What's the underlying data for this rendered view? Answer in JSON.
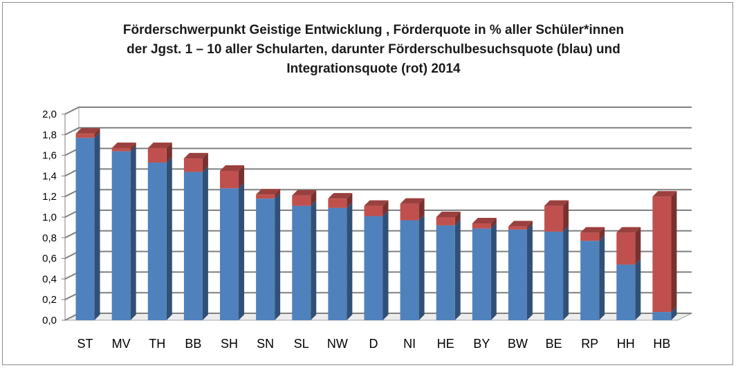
{
  "chart_data": {
    "type": "bar",
    "stacked": true,
    "title_lines": [
      "Förderschwerpunkt Geistige Entwicklung , Förderquote in % aller Schüler*innen",
      "der Jgst. 1 – 10 aller Schularten, darunter Förderschulbesuchsquote (blau) und",
      "Integrationsquote (rot) 2014"
    ],
    "categories": [
      "ST",
      "MV",
      "TH",
      "BB",
      "SH",
      "SN",
      "SL",
      "NW",
      "D",
      "NI",
      "HE",
      "BY",
      "BW",
      "BE",
      "RP",
      "HH",
      "HB"
    ],
    "series": [
      {
        "values": [
          1.77,
          1.64,
          1.53,
          1.44,
          1.28,
          1.18,
          1.11,
          1.09,
          1.01,
          0.97,
          0.92,
          0.89,
          0.88,
          0.86,
          0.77,
          0.54,
          0.08
        ]
      },
      {
        "values": [
          0.04,
          0.03,
          0.14,
          0.13,
          0.17,
          0.04,
          0.1,
          0.09,
          0.1,
          0.16,
          0.08,
          0.05,
          0.03,
          0.25,
          0.08,
          0.31,
          1.12
        ]
      }
    ],
    "colors": {
      "blue": "#4f81bd",
      "red": "#c0504d"
    },
    "ylim": [
      0,
      2.0
    ],
    "yticks": [
      "0,0",
      "0,2",
      "0,4",
      "0,6",
      "0,8",
      "1,0",
      "1,2",
      "1,4",
      "1,6",
      "1,8",
      "2,0"
    ],
    "grid": true,
    "view": "3d-column"
  }
}
